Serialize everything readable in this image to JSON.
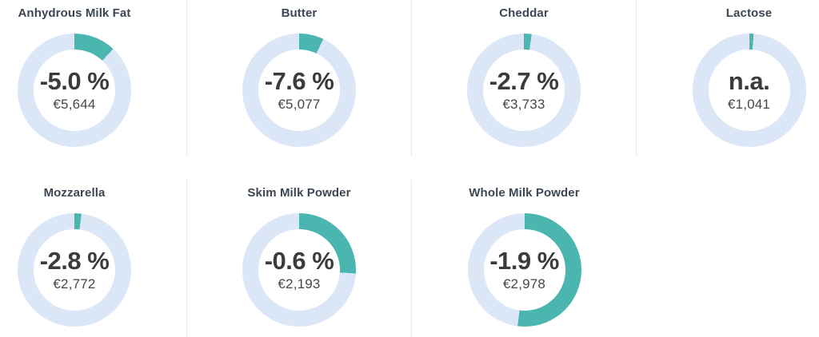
{
  "page": {
    "background": "#ffffff",
    "divider_color": "#e8e8e8"
  },
  "chart_data": {
    "type": "donut-gauge-grid",
    "description_unit": "EUR",
    "colors": {
      "arc": "#4ab6af",
      "track": "#dbe6f6",
      "title": "#3c4753",
      "value_text": "#3b3b3b",
      "price_text": "#474747"
    },
    "gauges": [
      {
        "label": "Anhydrous Milk Fat",
        "change_label": "-5.0 %",
        "change_pct": -5.0,
        "price_label": "€5,644",
        "price_eur": 5644,
        "gauge_fraction": 0.12,
        "row": 1,
        "col": 1
      },
      {
        "label": "Butter",
        "change_label": "-7.6 %",
        "change_pct": -7.6,
        "price_label": "€5,077",
        "price_eur": 5077,
        "gauge_fraction": 0.07,
        "row": 1,
        "col": 2
      },
      {
        "label": "Cheddar",
        "change_label": "-2.7 %",
        "change_pct": -2.7,
        "price_label": "€3,733",
        "price_eur": 3733,
        "gauge_fraction": 0.022,
        "row": 1,
        "col": 3
      },
      {
        "label": "Lactose",
        "change_label": "n.a.",
        "change_pct": null,
        "price_label": "€1,041",
        "price_eur": 1041,
        "gauge_fraction": 0.012,
        "row": 1,
        "col": 4
      },
      {
        "label": "Mozzarella",
        "change_label": "-2.8 %",
        "change_pct": -2.8,
        "price_label": "€2,772",
        "price_eur": 2772,
        "gauge_fraction": 0.02,
        "row": 2,
        "col": 1
      },
      {
        "label": "Skim Milk Powder",
        "change_label": "-0.6 %",
        "change_pct": -0.6,
        "price_label": "€2,193",
        "price_eur": 2193,
        "gauge_fraction": 0.26,
        "row": 2,
        "col": 2
      },
      {
        "label": "Whole Milk Powder",
        "change_label": "-1.9 %",
        "change_pct": -1.9,
        "price_label": "€2,978",
        "price_eur": 2978,
        "gauge_fraction": 0.52,
        "row": 2,
        "col": 3
      }
    ]
  }
}
